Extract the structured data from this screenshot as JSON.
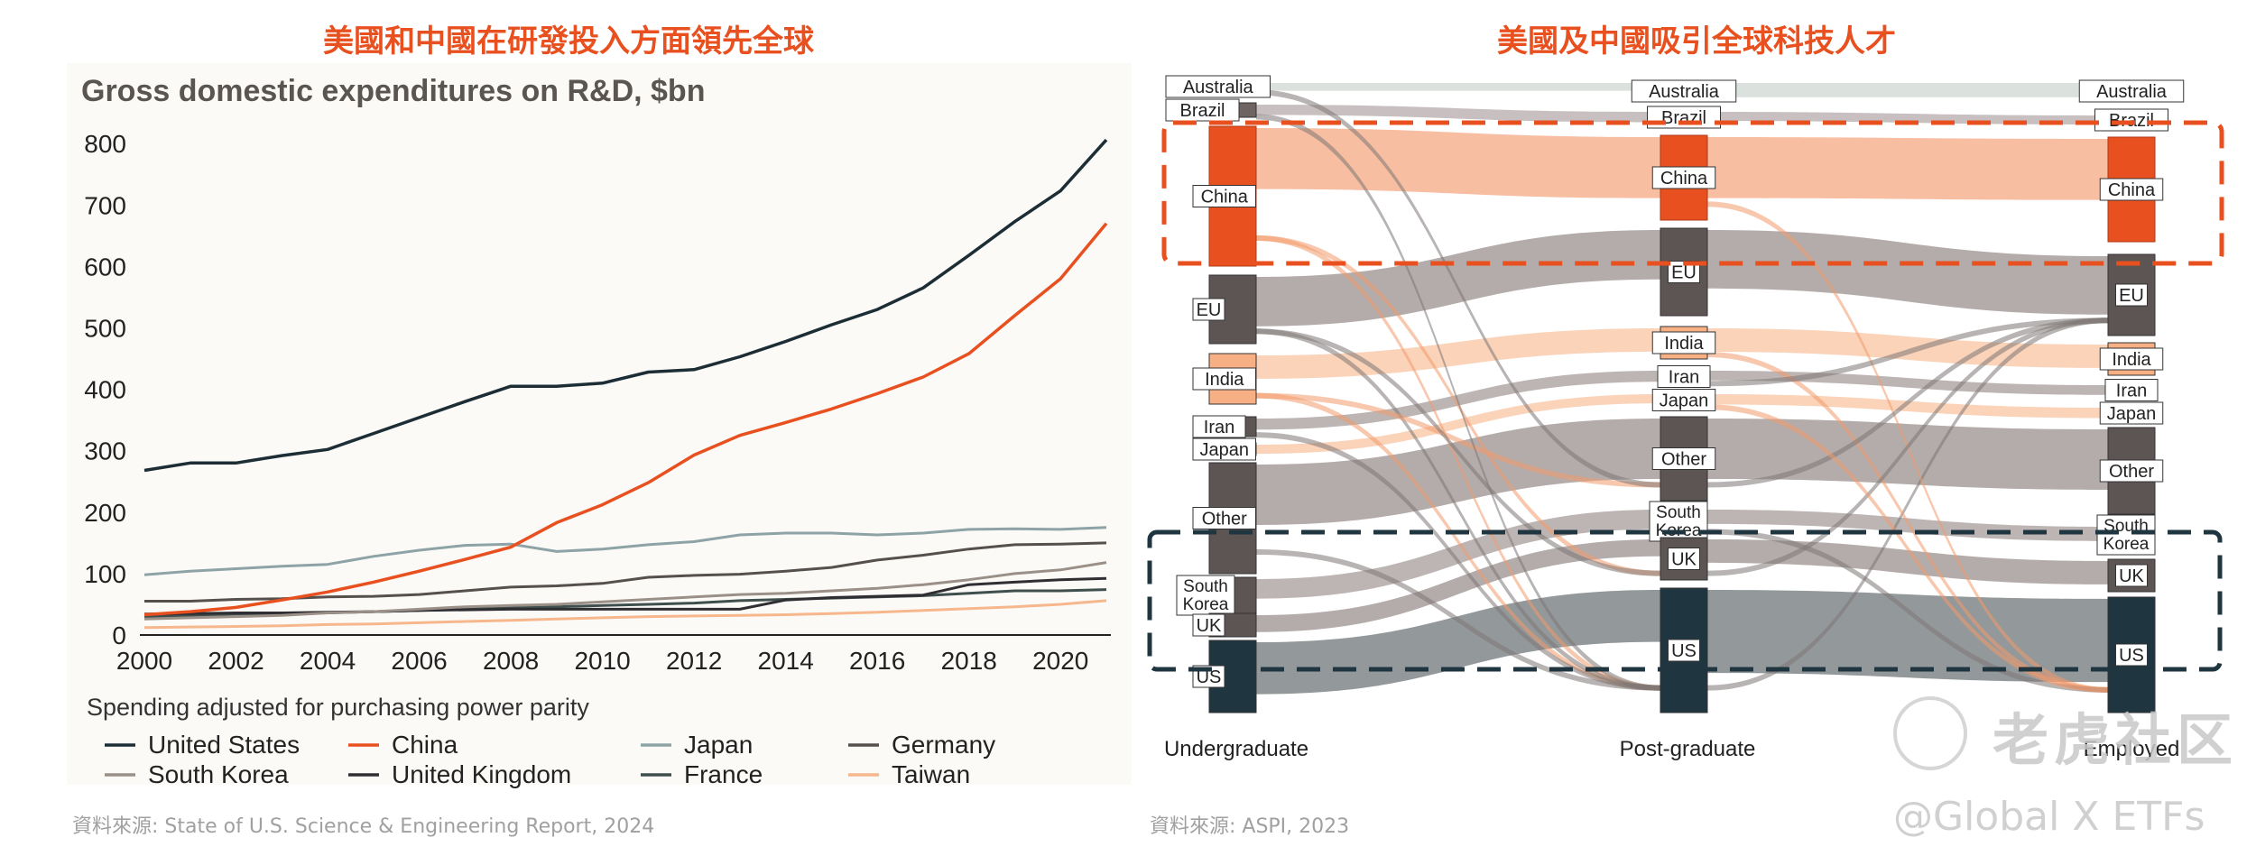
{
  "left": {
    "headline": "美國和中國在研發投入方面領先全球",
    "source": "資料來源:  State of U.S. Science & Engineering Report, 2024"
  },
  "right": {
    "headline": "美國及中國吸引全球科技人才",
    "source": "資料來源: ASPI, 2023"
  },
  "watermark": {
    "line1": "老虎社区",
    "line2": "@Global X ETFs"
  },
  "chart_data": [
    {
      "type": "line",
      "title": "Gross domestic expenditures on R&D, $bn",
      "subtitle": "Spending adjusted for purchasing power parity",
      "xlabel": "",
      "ylabel": "",
      "xlim": [
        2000,
        2021
      ],
      "ylim": [
        0,
        850
      ],
      "yticks": [
        0,
        100,
        200,
        300,
        400,
        500,
        600,
        700,
        800
      ],
      "xticks": [
        2000,
        2002,
        2004,
        2006,
        2008,
        2010,
        2012,
        2014,
        2016,
        2018,
        2020
      ],
      "x": [
        2000,
        2001,
        2002,
        2003,
        2004,
        2005,
        2006,
        2007,
        2008,
        2009,
        2010,
        2011,
        2012,
        2013,
        2014,
        2015,
        2016,
        2017,
        2018,
        2019,
        2020,
        2021
      ],
      "legend_order": [
        "United States",
        "China",
        "Japan",
        "Germany",
        "South Korea",
        "United Kingdom",
        "France",
        "Taiwan"
      ],
      "series": [
        {
          "name": "United States",
          "color": "#1c2d36",
          "values": [
            268,
            280,
            280,
            292,
            302,
            328,
            354,
            380,
            405,
            405,
            410,
            428,
            432,
            453,
            478,
            505,
            530,
            565,
            618,
            673,
            723,
            806
          ]
        },
        {
          "name": "China",
          "color": "#e8501f",
          "values": [
            33,
            38,
            45,
            57,
            70,
            86,
            104,
            123,
            143,
            183,
            212,
            248,
            293,
            325,
            346,
            368,
            393,
            420,
            458,
            520,
            580,
            670
          ]
        },
        {
          "name": "Japan",
          "color": "#8ea3a6",
          "values": [
            98,
            104,
            108,
            112,
            115,
            128,
            138,
            146,
            148,
            136,
            140,
            147,
            152,
            163,
            166,
            166,
            163,
            166,
            172,
            173,
            172,
            175
          ]
        },
        {
          "name": "Germany",
          "color": "#55504c",
          "values": [
            55,
            55,
            58,
            59,
            62,
            63,
            66,
            72,
            78,
            80,
            84,
            94,
            97,
            99,
            104,
            110,
            122,
            130,
            140,
            147,
            148,
            150
          ]
        },
        {
          "name": "South Korea",
          "color": "#9a9088",
          "values": [
            26,
            28,
            30,
            32,
            36,
            38,
            42,
            46,
            48,
            50,
            54,
            58,
            62,
            66,
            68,
            72,
            76,
            82,
            90,
            100,
            106,
            118
          ]
        },
        {
          "name": "United Kingdom",
          "color": "#2f2f33",
          "values": [
            34,
            35,
            36,
            36,
            37,
            38,
            40,
            41,
            42,
            42,
            42,
            42,
            42,
            42,
            57,
            61,
            63,
            65,
            82,
            86,
            90,
            92
          ]
        },
        {
          "name": "France",
          "color": "#3e4f4d",
          "values": [
            30,
            32,
            34,
            35,
            36,
            38,
            40,
            42,
            44,
            46,
            48,
            50,
            52,
            56,
            58,
            60,
            62,
            64,
            68,
            72,
            72,
            74
          ]
        },
        {
          "name": "Taiwan",
          "color": "#f6b78c",
          "values": [
            12,
            13,
            14,
            15,
            17,
            18,
            20,
            22,
            24,
            26,
            28,
            30,
            31,
            32,
            33,
            35,
            37,
            40,
            43,
            46,
            50,
            56
          ]
        }
      ]
    },
    {
      "type": "sankey",
      "stages": [
        "Undergraduate",
        "Post-graduate",
        "Employed"
      ],
      "nodes": {
        "Undergraduate": [
          "Australia",
          "Brazil",
          "China",
          "EU",
          "India",
          "Iran",
          "Japan",
          "Other",
          "South Korea",
          "UK",
          "US"
        ],
        "Post-graduate": [
          "Australia",
          "Brazil",
          "China",
          "EU",
          "India",
          "Iran",
          "Japan",
          "Other",
          "South Korea",
          "UK",
          "US"
        ],
        "Employed": [
          "Australia",
          "Brazil",
          "China",
          "EU",
          "India",
          "Iran",
          "Japan",
          "Other",
          "South Korea",
          "UK",
          "US"
        ]
      },
      "highlights": [
        {
          "group": "China",
          "color": "#e8501f"
        },
        {
          "group": "US",
          "color": "#1f3540"
        }
      ]
    }
  ]
}
